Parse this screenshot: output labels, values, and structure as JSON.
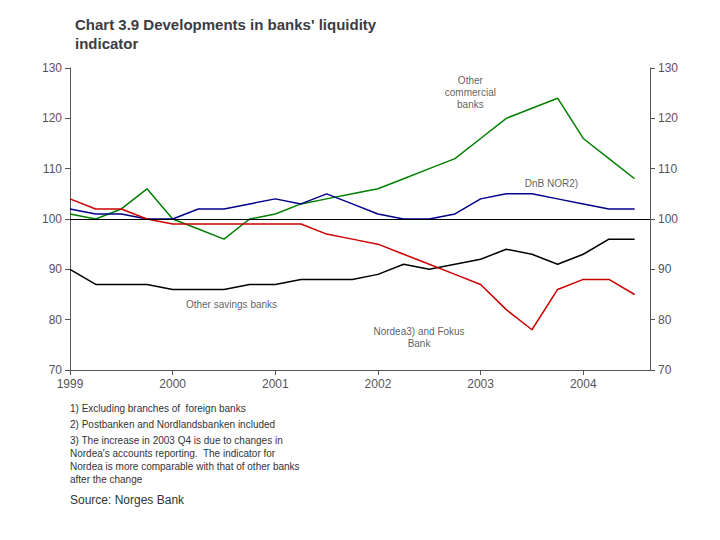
{
  "chart_data": {
    "type": "line",
    "title": "Chart 3.9 Developments in banks' liquidity\nindicator",
    "x": [
      1999.0,
      1999.25,
      1999.5,
      1999.75,
      2000.0,
      2000.25,
      2000.5,
      2000.75,
      2001.0,
      2001.25,
      2001.5,
      2001.75,
      2002.0,
      2002.25,
      2002.5,
      2002.75,
      2003.0,
      2003.25,
      2003.5,
      2003.75,
      2004.0,
      2004.25,
      2004.5
    ],
    "xlim": [
      1999,
      2004.65
    ],
    "xticks": [
      1999,
      2000,
      2001,
      2002,
      2003,
      2004
    ],
    "ylim": [
      70,
      130
    ],
    "yticks": [
      70,
      80,
      90,
      100,
      110,
      120,
      130
    ],
    "y2lim": [
      70,
      130
    ],
    "y2ticks": [
      70,
      80,
      90,
      100,
      110,
      120,
      130
    ],
    "grid": false,
    "series": [
      {
        "color": "#008000",
        "values": [
          101,
          100,
          102,
          106,
          100,
          98,
          96,
          100,
          101,
          103,
          104,
          105,
          106,
          108,
          110,
          112,
          116,
          120,
          122,
          124,
          116,
          112,
          108
        ]
      },
      {
        "color": "#00008b",
        "values": [
          102,
          101,
          101,
          100,
          100,
          102,
          102,
          103,
          104,
          103,
          105,
          103,
          101,
          100,
          100,
          101,
          104,
          105,
          105,
          104,
          103,
          102,
          102
        ]
      },
      {
        "color": "#000000",
        "values": [
          90,
          87,
          87,
          87,
          86,
          86,
          86,
          87,
          87,
          88,
          88,
          88,
          89,
          91,
          90,
          91,
          92,
          94,
          93,
          91,
          93,
          96,
          96
        ]
      },
      {
        "color": "#cc0000",
        "values": [
          104,
          102,
          102,
          100,
          99,
          99,
          99,
          99,
          99,
          99,
          97,
          96,
          95,
          93,
          91,
          89,
          87,
          82,
          78,
          86,
          88,
          88,
          85
        ]
      }
    ],
    "reference_line": {
      "y": 100,
      "color": "#000000"
    },
    "annotations": [
      {
        "text": "Other\ncommercial\nbanks",
        "x": 2002.9,
        "y": 121
      },
      {
        "text": "DnB NOR2)",
        "x": 2003.4,
        "y": 107
      },
      {
        "text": "Other savings banks",
        "x": 2000.1,
        "y": 83.0
      },
      {
        "text": "Nordea3) and Fokus\nBank",
        "x": 2002.4,
        "y": 73.5
      }
    ],
    "footnotes": [
      "1) Excluding branches of  foreign banks",
      "2) Postbanken and Nordlandsbanken included",
      "3) The increase in 2003 Q4 is due to changes in\nNordea's accounts reporting.  The indicator for\nNordea is more comparable with that of other banks\nafter the change",
      "Source: Norges Bank"
    ]
  }
}
